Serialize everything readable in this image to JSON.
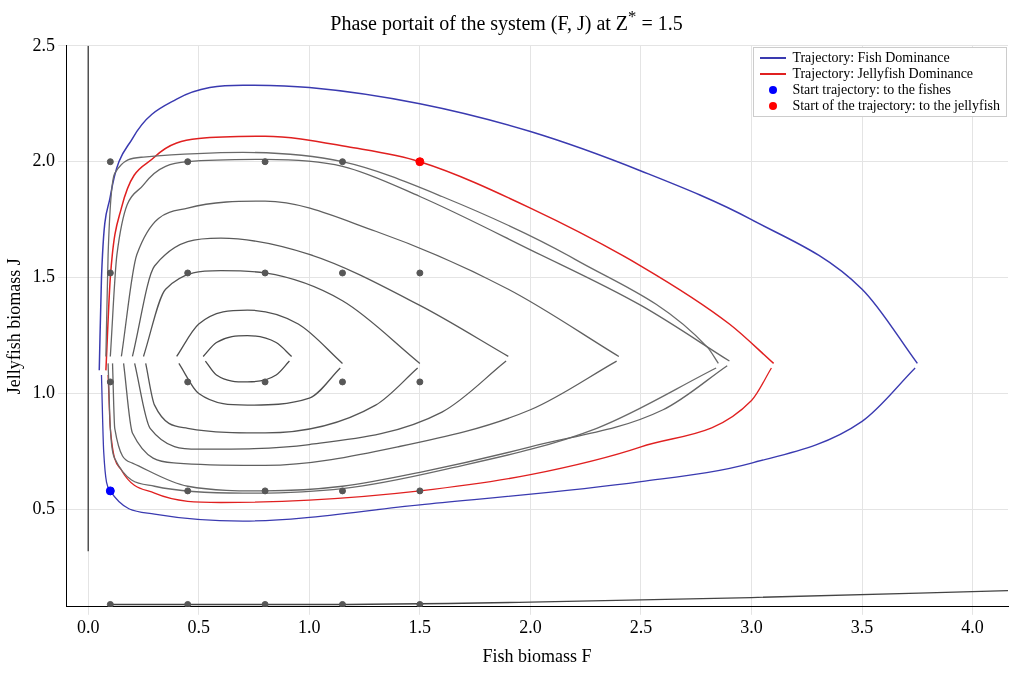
{
  "chart_data": {
    "type": "line",
    "title": "Phase portait of the system (F, J) at Z$^{*}$ = 1.5",
    "xlabel": "Fish biomass F",
    "ylabel": "Jellyfish biomass J",
    "xlim": [
      -0.1,
      4.16
    ],
    "ylim": [
      0.08,
      2.5
    ],
    "xticks": [
      {
        "value": 0,
        "label": "0.0"
      },
      {
        "value": 0.5,
        "label": "0.5"
      },
      {
        "value": 1,
        "label": "1.0"
      },
      {
        "value": 1.5,
        "label": "1.5"
      },
      {
        "value": 2,
        "label": "2.0"
      },
      {
        "value": 2.5,
        "label": "2.5"
      },
      {
        "value": 3,
        "label": "3.0"
      },
      {
        "value": 3.5,
        "label": "3.5"
      },
      {
        "value": 4,
        "label": "4.0"
      }
    ],
    "yticks": [
      {
        "value": 0.5,
        "label": "0.5"
      },
      {
        "value": 1,
        "label": "1.0"
      },
      {
        "value": 1.5,
        "label": "1.5"
      },
      {
        "value": 2,
        "label": "2.0"
      },
      {
        "value": 2.5,
        "label": "2.5"
      }
    ],
    "grid": true,
    "legend": "top right",
    "line_style": "solid",
    "marker": "none",
    "series": [
      {
        "color": "#4a4a4a",
        "x": [
          0.52,
          0.58,
          0.72,
          0.85,
          0.92
        ],
        "values": [
          1.16,
          1.22,
          1.25,
          1.22,
          1.16
        ]
      },
      {
        "color": "#4a4a4a",
        "x": [
          0.53,
          0.58,
          0.72,
          0.85,
          0.91
        ],
        "values": [
          1.14,
          1.08,
          1.05,
          1.08,
          1.14
        ]
      },
      {
        "color": "#505050",
        "x": [
          0.4,
          0.5,
          0.72,
          0.95,
          1.15
        ],
        "values": [
          1.16,
          1.3,
          1.36,
          1.3,
          1.13
        ]
      },
      {
        "color": "#505050",
        "x": [
          0.41,
          0.5,
          0.72,
          1.0,
          1.14
        ],
        "values": [
          1.13,
          1.0,
          0.95,
          0.98,
          1.11
        ]
      },
      {
        "color": "#555555",
        "x": [
          0.25,
          0.35,
          0.6,
          0.8,
          1.15,
          1.5
        ],
        "values": [
          1.16,
          1.45,
          1.53,
          1.52,
          1.4,
          1.13
        ]
      },
      {
        "color": "#555555",
        "x": [
          0.26,
          0.3,
          0.45,
          0.8,
          1.3,
          1.49
        ],
        "values": [
          1.13,
          0.95,
          0.85,
          0.83,
          0.95,
          1.11
        ]
      },
      {
        "color": "#5a5a5a",
        "x": [
          0.2,
          0.3,
          0.6,
          1.0,
          1.5,
          1.9
        ],
        "values": [
          1.16,
          1.55,
          1.67,
          1.6,
          1.38,
          1.16
        ]
      },
      {
        "color": "#5a5a5a",
        "x": [
          0.21,
          0.28,
          0.5,
          1.0,
          1.6,
          1.89
        ],
        "values": [
          1.13,
          0.85,
          0.76,
          0.78,
          0.92,
          1.14
        ]
      },
      {
        "color": "#606060",
        "x": [
          0.15,
          0.22,
          0.45,
          0.8,
          1.3,
          1.9,
          2.4
        ],
        "values": [
          1.16,
          1.6,
          1.8,
          1.83,
          1.7,
          1.45,
          1.16
        ]
      },
      {
        "color": "#606060",
        "x": [
          0.16,
          0.2,
          0.4,
          0.8,
          1.4,
          2.0,
          2.39
        ],
        "values": [
          1.13,
          0.83,
          0.7,
          0.69,
          0.77,
          0.93,
          1.14
        ]
      },
      {
        "color": "#656565",
        "x": [
          0.1,
          0.13,
          0.25,
          0.45,
          0.8,
          1.15,
          1.5,
          2.0,
          2.5,
          2.9
        ],
        "values": [
          1.16,
          1.6,
          1.9,
          2.0,
          2.01,
          1.98,
          1.85,
          1.62,
          1.38,
          1.14
        ]
      },
      {
        "color": "#656565",
        "x": [
          0.11,
          0.12,
          0.2,
          0.45,
          0.8,
          1.15,
          1.5,
          2.0,
          2.6,
          2.89
        ],
        "values": [
          1.13,
          0.85,
          0.7,
          0.6,
          0.58,
          0.6,
          0.66,
          0.77,
          0.93,
          1.12
        ]
      },
      {
        "color": "#6a6a6a",
        "x": [
          0.08,
          0.09,
          0.12,
          0.25,
          0.7,
          1.15,
          1.6,
          2.2,
          2.8,
          2.85
        ],
        "values": [
          1.16,
          1.6,
          1.95,
          2.02,
          2.04,
          2.0,
          1.85,
          1.58,
          1.2,
          1.13
        ]
      },
      {
        "color": "#6a6a6a",
        "x": [
          0.09,
          0.1,
          0.12,
          0.3,
          0.7,
          1.15,
          1.6,
          2.3,
          2.84
        ],
        "values": [
          1.13,
          0.85,
          0.72,
          0.6,
          0.57,
          0.59,
          0.67,
          0.85,
          1.11
        ]
      },
      {
        "color": "#444444",
        "x": [
          0.1,
          1.0,
          2.0,
          3.0,
          4.16
        ],
        "values": [
          0.09,
          0.09,
          0.1,
          0.12,
          0.15
        ]
      },
      {
        "color": "#3a3a3a",
        "x": [
          0,
          0
        ],
        "values": [
          0.32,
          2.5
        ]
      },
      {
        "type": "scatter",
        "color": "#575757",
        "marker": "circle",
        "x": [
          0.1,
          0.45,
          0.8,
          1.15,
          0.1,
          0.45,
          0.8,
          1.15,
          1.5,
          0.1,
          0.45,
          0.8,
          1.15,
          1.5,
          0.45,
          0.8,
          1.15,
          1.5,
          0.1,
          0.45,
          0.8,
          1.15,
          1.5
        ],
        "values": [
          2.0,
          2.0,
          2.0,
          2.0,
          1.52,
          1.52,
          1.52,
          1.52,
          1.52,
          1.05,
          1.05,
          1.05,
          1.05,
          1.05,
          0.58,
          0.58,
          0.58,
          0.58,
          0.09,
          0.09,
          0.09,
          0.09,
          0.09
        ]
      },
      {
        "name": "Trajectory: Fish Dominance",
        "color": "#3a3ab0",
        "x": [
          0.05,
          0.06,
          0.1,
          0.2,
          0.4,
          0.7,
          1.0,
          1.5,
          2.0,
          2.5,
          3.0,
          3.5,
          3.75
        ],
        "values": [
          1.1,
          1.5,
          1.85,
          2.1,
          2.27,
          2.33,
          2.32,
          2.25,
          2.13,
          1.96,
          1.75,
          1.45,
          1.13
        ]
      },
      {
        "color": "#3a3ab0",
        "x": [
          0.06,
          0.07,
          0.1,
          0.3,
          0.7,
          1.5,
          2.5,
          3.0,
          3.5,
          3.74
        ],
        "values": [
          1.08,
          0.75,
          0.58,
          0.48,
          0.45,
          0.52,
          0.62,
          0.7,
          0.88,
          1.11
        ]
      },
      {
        "name": "Trajectory: Jellyfish Dominance",
        "color": "#e02020",
        "x": [
          0.08,
          0.1,
          0.15,
          0.3,
          0.5,
          0.8,
          1.2,
          1.5,
          2.0,
          2.5,
          2.9,
          3.1
        ],
        "values": [
          1.1,
          1.5,
          1.8,
          2.02,
          2.1,
          2.11,
          2.06,
          2.0,
          1.8,
          1.55,
          1.3,
          1.13
        ]
      },
      {
        "color": "#e02020",
        "x": [
          0.09,
          0.1,
          0.15,
          0.3,
          0.6,
          1.0,
          1.5,
          2.0,
          2.5,
          3.0,
          3.09
        ],
        "values": [
          1.08,
          0.85,
          0.67,
          0.57,
          0.53,
          0.54,
          0.58,
          0.65,
          0.77,
          0.97,
          1.11
        ]
      },
      {
        "type": "scatter",
        "name": "Start trajectory: to the fishes",
        "color": "#0000ff",
        "marker": "circle",
        "x": [
          0.1
        ],
        "values": [
          0.58
        ]
      },
      {
        "type": "scatter",
        "name": "Start of the trajectory: to the jellyfish",
        "color": "#ff0000",
        "marker": "circle",
        "x": [
          1.5
        ],
        "values": [
          2.0
        ]
      }
    ]
  }
}
